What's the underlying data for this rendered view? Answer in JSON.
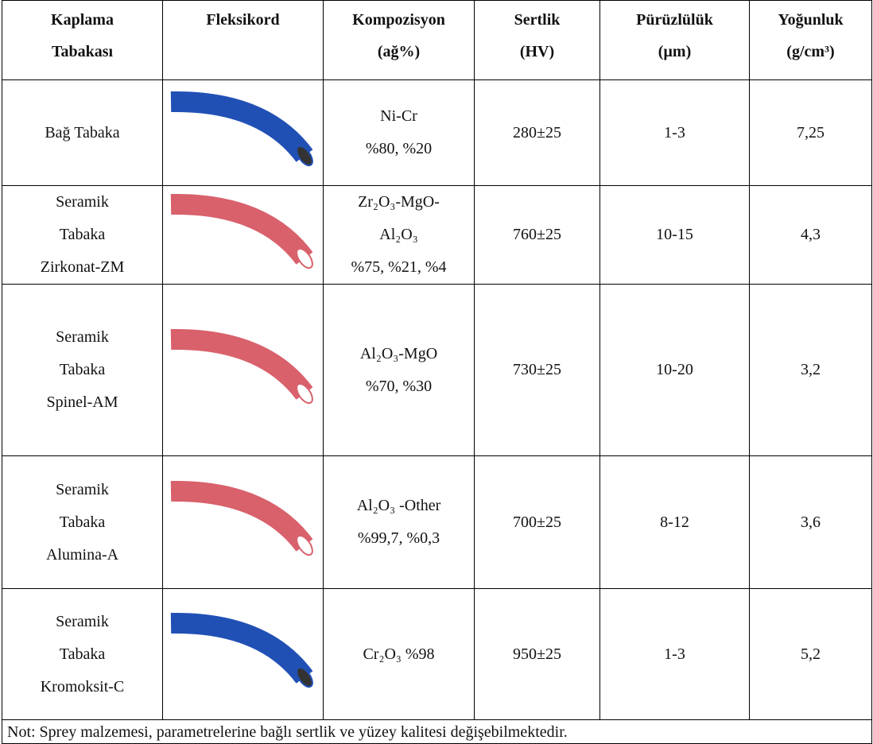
{
  "table": {
    "header": [
      [
        "Kaplama",
        "Tabakası"
      ],
      [
        "Fleksikord"
      ],
      [
        "Kompozisyon",
        "(ağ%)"
      ],
      [
        "Sertlik",
        "(HV)"
      ],
      [
        "Pürüzlülük",
        "(µm)"
      ],
      [
        "Yoğunluk",
        "(g/cm³)"
      ]
    ],
    "rows": [
      {
        "layer": [
          "Bağ Tabaka"
        ],
        "composition": [
          "Ni-Cr",
          "%80, %20"
        ],
        "hardness": "280±25",
        "roughness": "1-3",
        "density": "7,25"
      },
      {
        "layer": [
          "Seramik",
          "Tabaka",
          "Zirkonat-ZM"
        ],
        "composition": [
          "Zr₂O₃-MgO-",
          "Al₂O₃",
          "%75, %21, %4"
        ],
        "hardness": "760±25",
        "roughness": "10-15",
        "density": "4,3"
      },
      {
        "layer": [
          "Seramik",
          "Tabaka",
          "Spinel-AM"
        ],
        "composition": [
          "Al₂O₃-MgO",
          "%70, %30"
        ],
        "hardness": "730±25",
        "roughness": "10-20",
        "density": "3,2"
      },
      {
        "layer": [
          "Seramik",
          "Tabaka",
          "Alumina-A"
        ],
        "composition": [
          "Al₂O₃ -Other",
          "%99,7, %0,3"
        ],
        "hardness": "700±25",
        "roughness": "8-12",
        "density": "3,6"
      },
      {
        "layer": [
          "Seramik",
          "Tabaka",
          "Kromoksit-C"
        ],
        "composition": [
          "Cr₂O₃ %98"
        ],
        "hardness": "950±25",
        "roughness": "1-3",
        "density": "5,2"
      }
    ],
    "note": "Not: Sprey malzemesi, parametrelerine bağlı sertlik ve yüzey kalitesi değişebilmektedir."
  }
}
